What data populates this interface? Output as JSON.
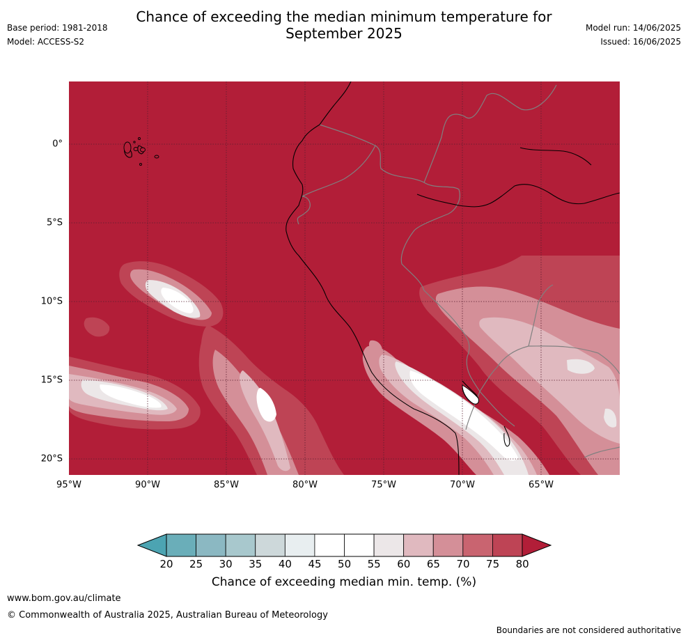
{
  "header": {
    "title_line1": "Chance of exceeding the median minimum temperature for",
    "title_line2": "September 2025",
    "base_period": "Base period: 1981-2018",
    "model": "Model: ACCESS-S2",
    "model_run": "Model run: 14/06/2025",
    "issued": "Issued: 16/06/2025"
  },
  "map": {
    "lat_labels": [
      "0°",
      "5°S",
      "10°S",
      "15°S",
      "20°S"
    ],
    "lon_labels": [
      "95°W",
      "90°W",
      "85°W",
      "80°W",
      "75°W",
      "70°W",
      "65°W"
    ],
    "background_color": "#b21e38",
    "coastline_color": "#000000",
    "border_color": "#808080",
    "gridline_color": "#5a2030"
  },
  "colorbar": {
    "ticks": [
      "20",
      "25",
      "30",
      "35",
      "40",
      "45",
      "50",
      "55",
      "60",
      "65",
      "70",
      "75",
      "80"
    ],
    "colors": [
      "#6aaeb9",
      "#8bb8c2",
      "#a8c8cd",
      "#cdd8da",
      "#e8eef0",
      "#ffffff",
      "#ffffff",
      "#ece7e8",
      "#e0b9bf",
      "#d48f98",
      "#c96470",
      "#be4455"
    ],
    "low_extend_color": "#4ca4b2",
    "high_extend_color": "#b21e38",
    "label": "Chance of exceeding median min. temp. (%)"
  },
  "footer": {
    "website": "www.bom.gov.au/climate",
    "copyright": "© Commonwealth of Australia 2025, Australian Bureau of Meteorology",
    "disclaimer": "Boundaries are not considered authoritative"
  }
}
